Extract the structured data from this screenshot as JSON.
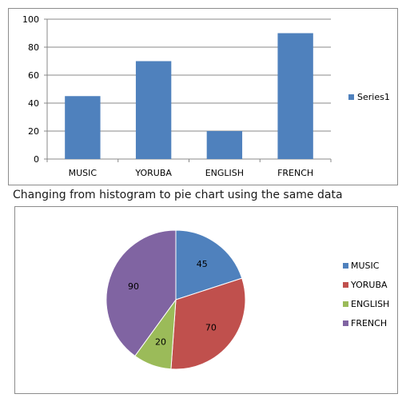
{
  "caption": "Changing from histogram to pie chart using the same data",
  "colors": {
    "bar": "#4f81bd",
    "slices": [
      "#4f81bd",
      "#c0504d",
      "#9bbb59",
      "#8064a2"
    ],
    "gridline": "#888888",
    "border": "#8c8c8c"
  },
  "chart_data": [
    {
      "type": "bar",
      "categories": [
        "MUSIC",
        "YORUBA",
        "ENGLISH",
        "FRENCH"
      ],
      "series": [
        {
          "name": "Series1",
          "values": [
            45,
            70,
            20,
            90
          ]
        }
      ],
      "ylim": [
        0,
        100
      ],
      "yticks": [
        0,
        20,
        40,
        60,
        80,
        100
      ],
      "grid": true,
      "legend": "right"
    },
    {
      "type": "pie",
      "categories": [
        "MUSIC",
        "YORUBA",
        "ENGLISH",
        "FRENCH"
      ],
      "values": [
        45,
        70,
        20,
        90
      ],
      "data_labels": [
        "45",
        "70",
        "20",
        "90"
      ],
      "legend": "right"
    }
  ]
}
